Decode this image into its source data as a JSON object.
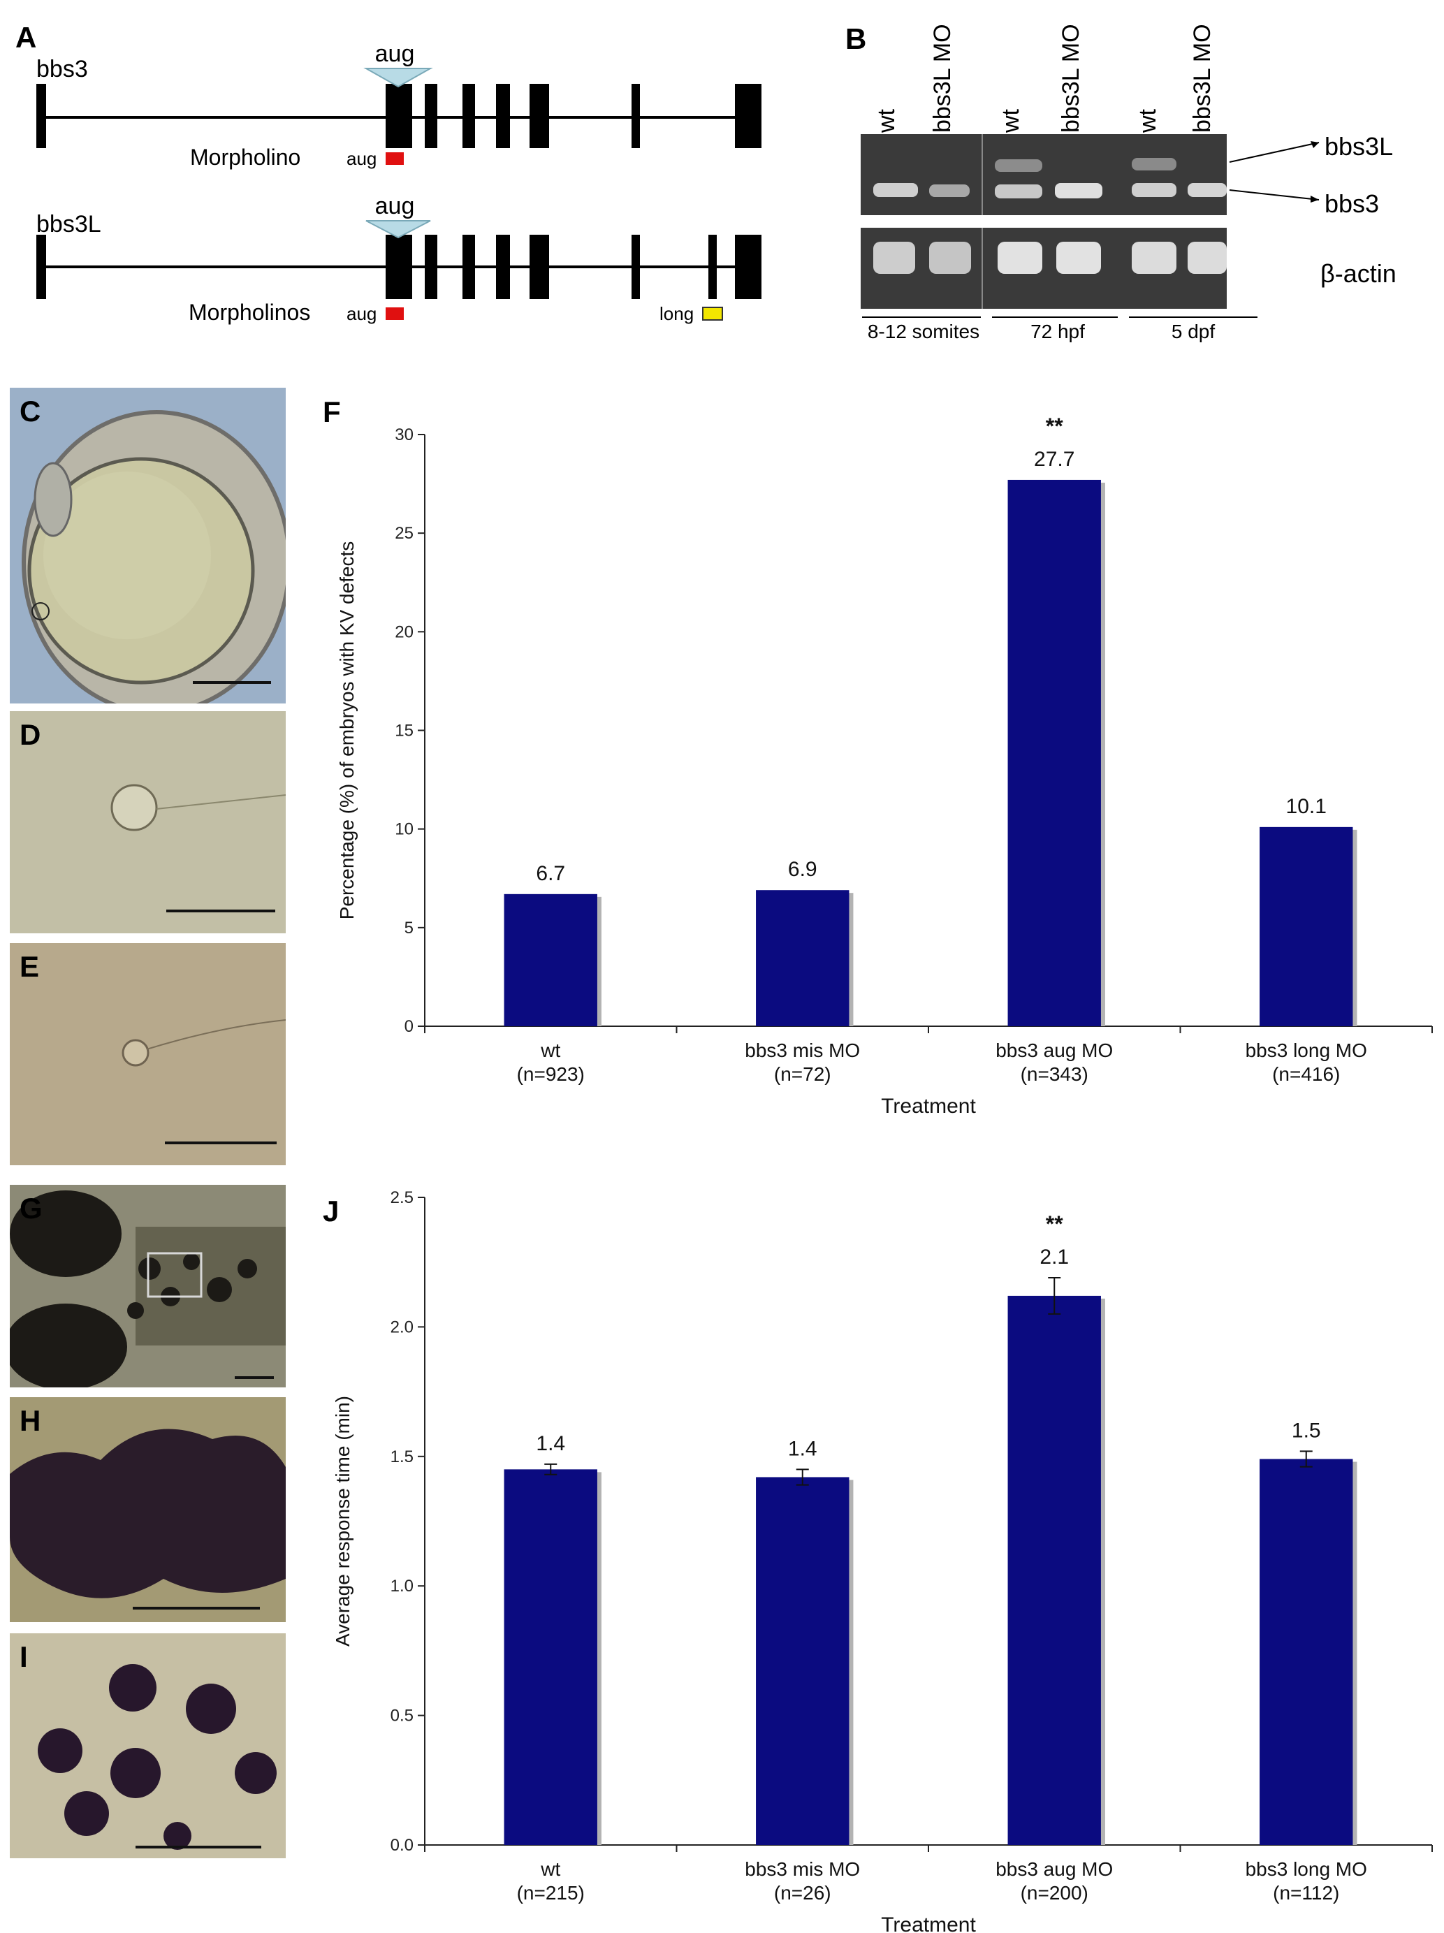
{
  "panels": {
    "A": "A",
    "B": "B",
    "C": "C",
    "D": "D",
    "E": "E",
    "F": "F",
    "G": "G",
    "H": "H",
    "I": "I",
    "J": "J"
  },
  "panel_a": {
    "genes": [
      {
        "name": "bbs3",
        "aug_marker": "aug",
        "mo_label": "Morpholino",
        "mo_aug": "aug"
      },
      {
        "name": "bbs3L",
        "aug_marker": "aug",
        "mo_label": "Morpholinos",
        "mo_aug": "aug",
        "mo_long": "long"
      }
    ],
    "colors": {
      "aug_mo": "#e01010",
      "long_mo": "#f2e600",
      "triangle": "#b8dbe6"
    }
  },
  "panel_b": {
    "lanes": [
      "wt",
      "bbs3L MO",
      "wt",
      "bbs3L MO",
      "wt",
      "bbs3L MO"
    ],
    "band_labels": [
      "bbs3L",
      "bbs3",
      "β-actin"
    ],
    "stages": [
      "8-12 somites",
      "72 hpf",
      "5 dpf"
    ]
  },
  "chart_data": [
    {
      "type": "bar",
      "panel": "F",
      "categories": [
        "wt",
        "bbs3 mis MO",
        "bbs3 aug MO",
        "bbs3 long MO"
      ],
      "n_labels": [
        "(n=923)",
        "(n=72)",
        "(n=343)",
        "(n=416)"
      ],
      "values": [
        6.7,
        6.9,
        27.7,
        10.1
      ],
      "value_labels": [
        "6.7",
        "6.9",
        "27.7",
        "10.1"
      ],
      "significance": [
        "",
        "",
        "**",
        ""
      ],
      "xlabel": "Treatment",
      "ylabel": "Percentage (%) of embryos with KV defects",
      "ylim": [
        0,
        30
      ],
      "yticks": [
        "0",
        "5",
        "10",
        "15",
        "20",
        "25",
        "30"
      ],
      "bar_color": "#0b0b80"
    },
    {
      "type": "bar",
      "panel": "J",
      "categories": [
        "wt",
        "bbs3 mis MO",
        "bbs3 aug MO",
        "bbs3 long MO"
      ],
      "n_labels": [
        "(n=215)",
        "(n=26)",
        "(n=200)",
        "(n=112)"
      ],
      "values": [
        1.45,
        1.42,
        2.12,
        1.49
      ],
      "errors": [
        0.02,
        0.03,
        0.07,
        0.03
      ],
      "value_labels": [
        "1.4",
        "1.4",
        "2.1",
        "1.5"
      ],
      "significance": [
        "",
        "",
        "**",
        ""
      ],
      "xlabel": "Treatment",
      "ylabel": "Average response time (min)",
      "ylim": [
        0,
        2.5
      ],
      "yticks": [
        "0.0",
        "0.5",
        "1.0",
        "1.5",
        "2.0",
        "2.5"
      ],
      "bar_color": "#0b0b80"
    }
  ]
}
